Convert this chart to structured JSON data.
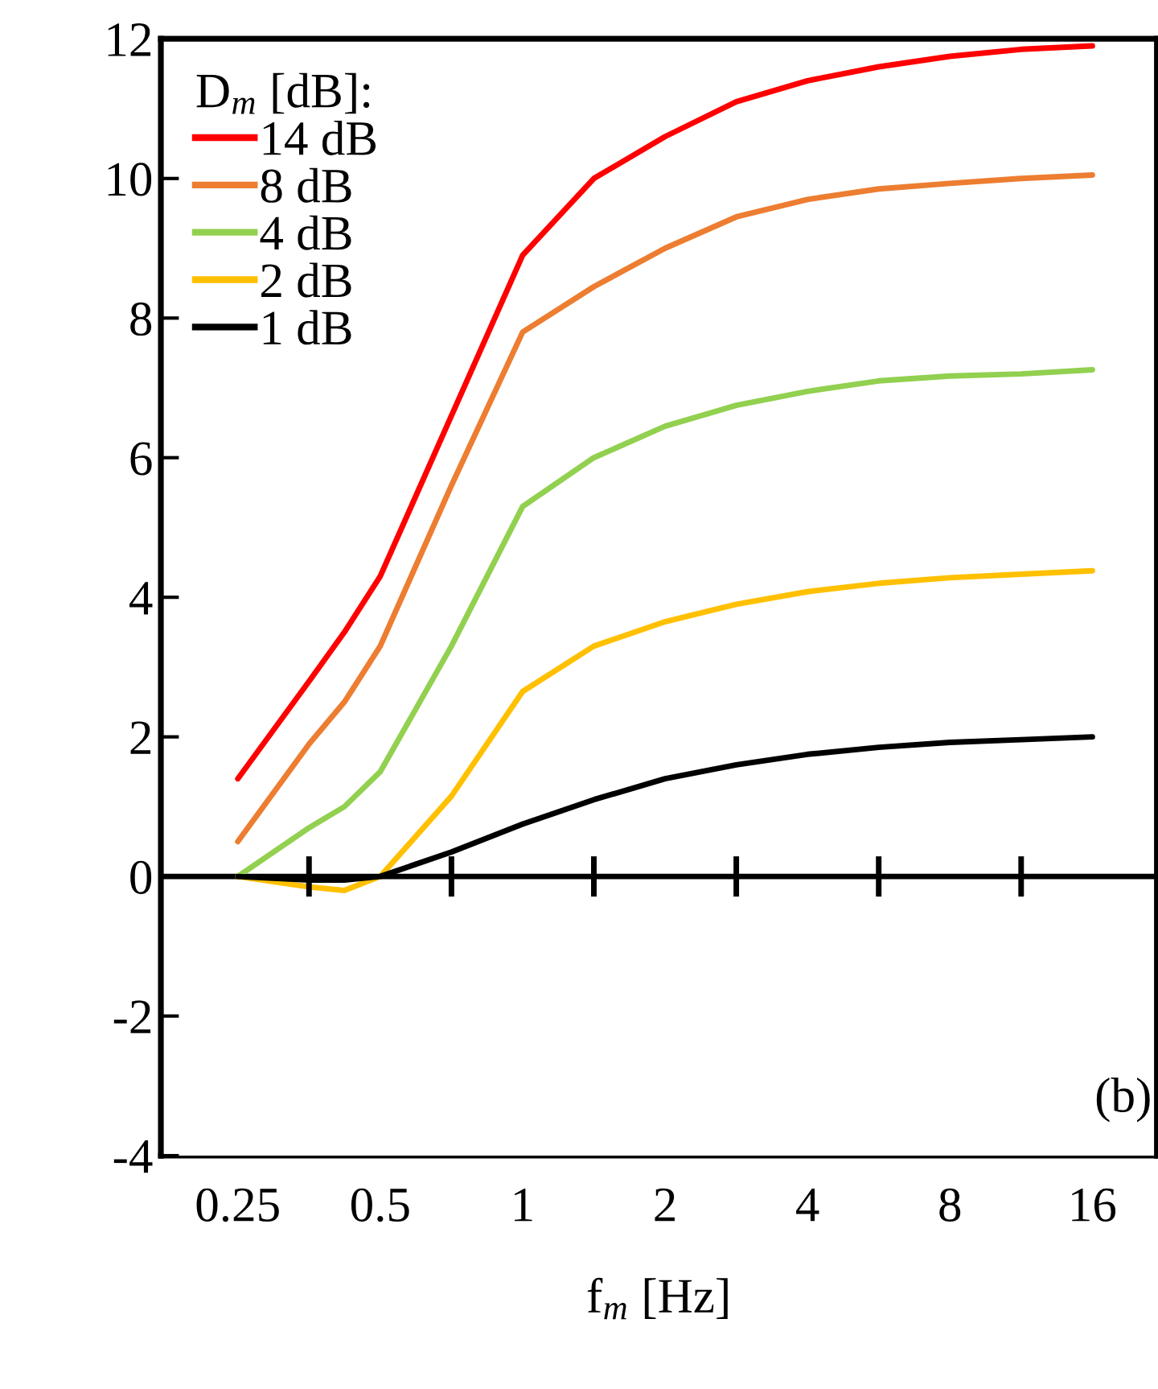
{
  "chart_data": {
    "type": "line",
    "xlabel": "f$_{m}$ [Hz]",
    "legend_title": "D$_{m}$ [dB]:",
    "log": "x",
    "xlim": [
      0.172,
      21.9
    ],
    "ylim": [
      -4,
      12
    ],
    "yticks": [
      -4,
      -2,
      0,
      2,
      4,
      6,
      8,
      10,
      12
    ],
    "xticks": [
      0.25,
      0.5,
      1,
      2,
      4,
      8,
      16
    ],
    "x": [
      0.25,
      0.354,
      0.42,
      0.5,
      0.707,
      1,
      1.414,
      2,
      2.83,
      4,
      5.66,
      8,
      11.31,
      16
    ],
    "series": [
      {
        "name": "14 dB",
        "color": "#ff0000",
        "values": [
          1.4,
          2.8,
          3.5,
          4.3,
          6.6,
          8.9,
          10.0,
          10.6,
          11.1,
          11.4,
          11.6,
          11.75,
          11.85,
          11.9
        ]
      },
      {
        "name": "8 dB",
        "color": "#ed7d31",
        "values": [
          0.5,
          1.9,
          2.5,
          3.3,
          5.6,
          7.8,
          8.45,
          9.0,
          9.45,
          9.7,
          9.85,
          9.93,
          10.0,
          10.05
        ]
      },
      {
        "name": "4 dB",
        "color": "#92d050",
        "values": [
          0,
          0.7,
          1.0,
          1.5,
          3.3,
          5.3,
          6.0,
          6.45,
          6.75,
          6.95,
          7.1,
          7.17,
          7.2,
          7.26
        ]
      },
      {
        "name": "2 dB",
        "color": "#ffc000",
        "values": [
          0,
          -0.15,
          -0.2,
          0,
          1.15,
          2.65,
          3.3,
          3.65,
          3.9,
          4.08,
          4.2,
          4.28,
          4.33,
          4.38
        ]
      },
      {
        "name": "1 dB",
        "color": "#000000",
        "values": [
          0,
          -0.05,
          -0.05,
          0,
          0.35,
          0.75,
          1.1,
          1.4,
          1.6,
          1.75,
          1.85,
          1.92,
          1.96,
          2.0
        ]
      }
    ],
    "ref_lines": [
      {
        "axis": "y",
        "value": 0,
        "color": "#000000"
      }
    ],
    "annotations": [
      "(b)"
    ],
    "legend": "top left",
    "grid": false,
    "marker": "none",
    "line_style": "solid"
  }
}
